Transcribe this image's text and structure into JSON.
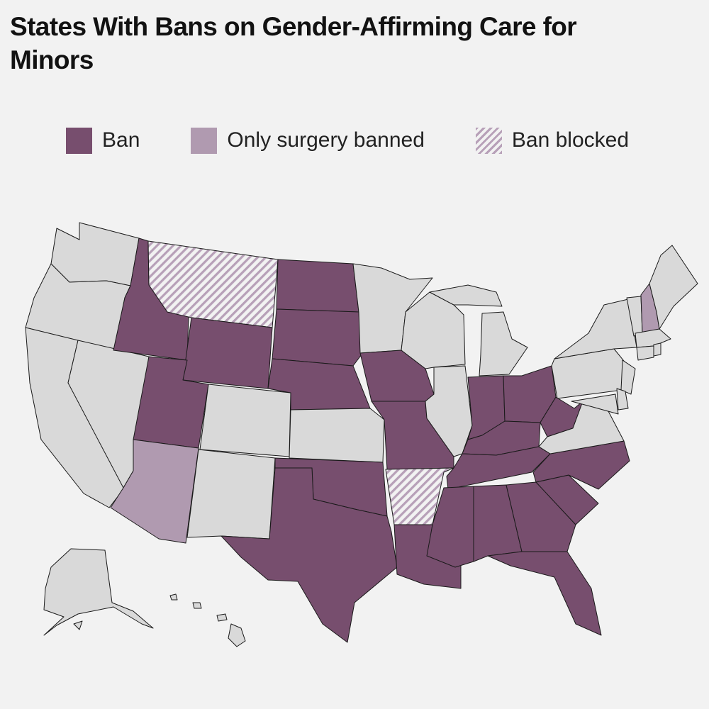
{
  "title": "States With Bans on Gender-Affirming Care for Minors",
  "legend": {
    "ban": "Ban",
    "surgery": "Only surgery banned",
    "blocked": "Ban blocked"
  },
  "colors": {
    "ban": "#774e6e",
    "surgery": "#b09ab0",
    "blocked_hatch": "#b7a0b8",
    "no_ban": "#d9d9d9",
    "background": "#f2f2f2"
  },
  "state_status": {
    "ban": [
      "Idaho",
      "Utah",
      "Wyoming",
      "North Dakota",
      "South Dakota",
      "Nebraska",
      "Oklahoma",
      "Texas",
      "Iowa",
      "Missouri",
      "Louisiana",
      "Mississippi",
      "Alabama",
      "Georgia",
      "Florida",
      "Tennessee",
      "Kentucky",
      "Indiana",
      "Ohio",
      "West Virginia",
      "North Carolina",
      "South Carolina"
    ],
    "surgery": [
      "Arizona",
      "New Hampshire"
    ],
    "blocked": [
      "Montana",
      "Arkansas"
    ]
  }
}
